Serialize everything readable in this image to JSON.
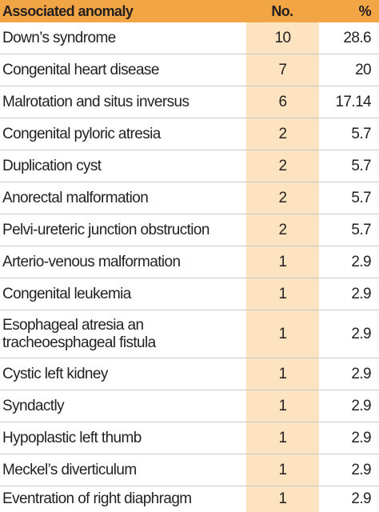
{
  "table": {
    "header": {
      "anomaly": "Associated anomaly",
      "no": "No.",
      "percent": "%"
    },
    "rows": [
      {
        "anomaly": "Down’s syndrome",
        "no": "10",
        "percent": "28.6"
      },
      {
        "anomaly": "Congenital heart disease",
        "no": "7",
        "percent": "20"
      },
      {
        "anomaly": "Malrotation and situs inversus",
        "no": "6",
        "percent": "17.14"
      },
      {
        "anomaly": "Congenital pyloric atresia",
        "no": "2",
        "percent": "5.7"
      },
      {
        "anomaly": "Duplication cyst",
        "no": "2",
        "percent": "5.7"
      },
      {
        "anomaly": "Anorectal malformation",
        "no": "2",
        "percent": "5.7"
      },
      {
        "anomaly": "Pelvi-ureteric junction obstruction",
        "no": "2",
        "percent": "5.7"
      },
      {
        "anomaly": "Arterio-venous malformation",
        "no": "1",
        "percent": "2.9"
      },
      {
        "anomaly": "Congenital leukemia",
        "no": "1",
        "percent": "2.9"
      },
      {
        "anomaly": "Esophageal atresia an\ntracheoesphageal fistula",
        "no": "1",
        "percent": "2.9"
      },
      {
        "anomaly": "Cystic left kidney",
        "no": "1",
        "percent": "2.9"
      },
      {
        "anomaly": "Syndactly",
        "no": "1",
        "percent": "2.9"
      },
      {
        "anomaly": "Hypoplastic left thumb",
        "no": "1",
        "percent": "2.9"
      },
      {
        "anomaly": "Meckel’s diverticulum",
        "no": "1",
        "percent": "2.9"
      },
      {
        "anomaly": "Eventration of right diaphragm",
        "no": "1",
        "percent": "2.9"
      }
    ]
  },
  "colors": {
    "header_bg": "#f2a544",
    "no_column_bg": "#fde3bf",
    "divider": "#c8c8c8"
  }
}
